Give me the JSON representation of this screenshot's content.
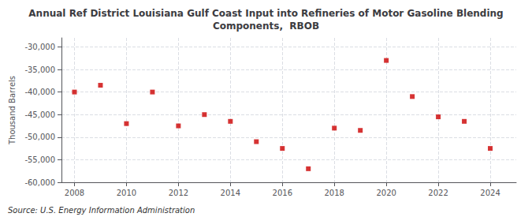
{
  "chart_data": {
    "type": "scatter",
    "title": "Annual Ref District Louisiana Gulf Coast Input into Refineries of Motor Gasoline Blending\nComponents,  RBOB",
    "ylabel": "Thousand Barrels",
    "annotations": [
      "Source: U.S. Energy Information Administration"
    ],
    "x": [
      2008,
      2009,
      2010,
      2011,
      2012,
      2013,
      2014,
      2015,
      2016,
      2017,
      2018,
      2019,
      2020,
      2021,
      2022,
      2023,
      2024
    ],
    "values": [
      -40000,
      -38500,
      -47000,
      -40000,
      -47500,
      -45000,
      -46500,
      -51000,
      -52500,
      -57000,
      -48000,
      -48500,
      -33000,
      -41000,
      -45500,
      -46500,
      -52500
    ],
    "color": "#cc0000",
    "marker": "square",
    "xlim": [
      2007.5,
      2025.0
    ],
    "xticks": [
      2008,
      2010,
      2012,
      2014,
      2016,
      2018,
      2020,
      2022,
      2024
    ],
    "ylim": [
      -60000,
      -28000
    ],
    "yticks": [
      {
        "value": -60000,
        "label": "-60,000"
      },
      {
        "value": -55000,
        "label": "-55,000"
      },
      {
        "value": -50000,
        "label": "-50,000"
      },
      {
        "value": -45000,
        "label": "-45,000"
      },
      {
        "value": -40000,
        "label": "-40,000"
      },
      {
        "value": -35000,
        "label": "-35,000"
      },
      {
        "value": -30000,
        "label": "-30,000"
      }
    ],
    "grid": true
  }
}
